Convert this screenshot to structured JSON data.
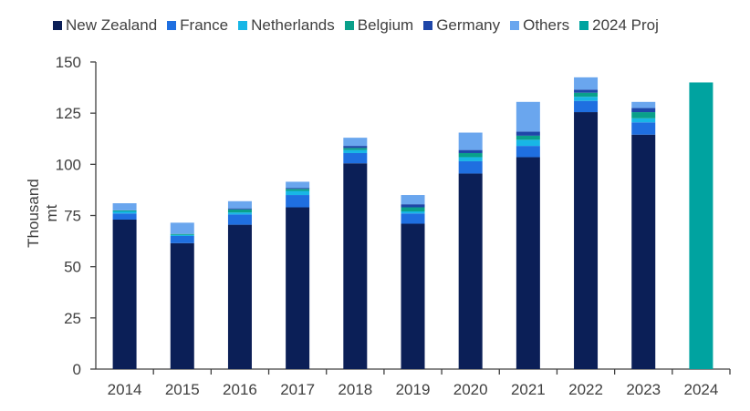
{
  "chart_data": {
    "type": "bar",
    "stacked": true,
    "categories": [
      "2014",
      "2015",
      "2016",
      "2017",
      "2018",
      "2019",
      "2020",
      "2021",
      "2022",
      "2023",
      "2024"
    ],
    "series": [
      {
        "name": "New Zealand",
        "color": "#0b1f57",
        "values": [
          73,
          61.5,
          70.5,
          79,
          100.5,
          71,
          95.5,
          103.5,
          125.5,
          114.5,
          0
        ]
      },
      {
        "name": "France",
        "color": "#1f6fe0",
        "values": [
          3,
          3.5,
          5,
          6,
          5,
          5,
          6,
          5.5,
          5.5,
          6,
          0
        ]
      },
      {
        "name": "Netherlands",
        "color": "#18b6e6",
        "values": [
          1,
          0.5,
          1,
          2,
          1.5,
          1,
          2,
          3,
          2,
          2,
          0
        ]
      },
      {
        "name": "Belgium",
        "color": "#0aa08a",
        "values": [
          0.5,
          0.5,
          1.5,
          1,
          1,
          2,
          2,
          2,
          2,
          3,
          0
        ]
      },
      {
        "name": "Germany",
        "color": "#1e46a8",
        "values": [
          0,
          0,
          0.5,
          0.5,
          1,
          1.5,
          1.5,
          2,
          1.5,
          2,
          0
        ]
      },
      {
        "name": "Others",
        "color": "#6aa6ee",
        "values": [
          3.5,
          5.5,
          3.5,
          3,
          4,
          4.5,
          8.5,
          14.5,
          6,
          3,
          0
        ]
      },
      {
        "name": "2024 Proj",
        "color": "#00a3a0",
        "values": [
          0,
          0,
          0,
          0,
          0,
          0,
          0,
          0,
          0,
          0,
          140
        ]
      }
    ],
    "ylabel": "Thousand mt",
    "xlabel": "",
    "title": "",
    "ylim": [
      0,
      150
    ],
    "yticks": [
      0,
      25,
      50,
      75,
      100,
      125,
      150
    ],
    "grid": false,
    "legend": "top"
  }
}
